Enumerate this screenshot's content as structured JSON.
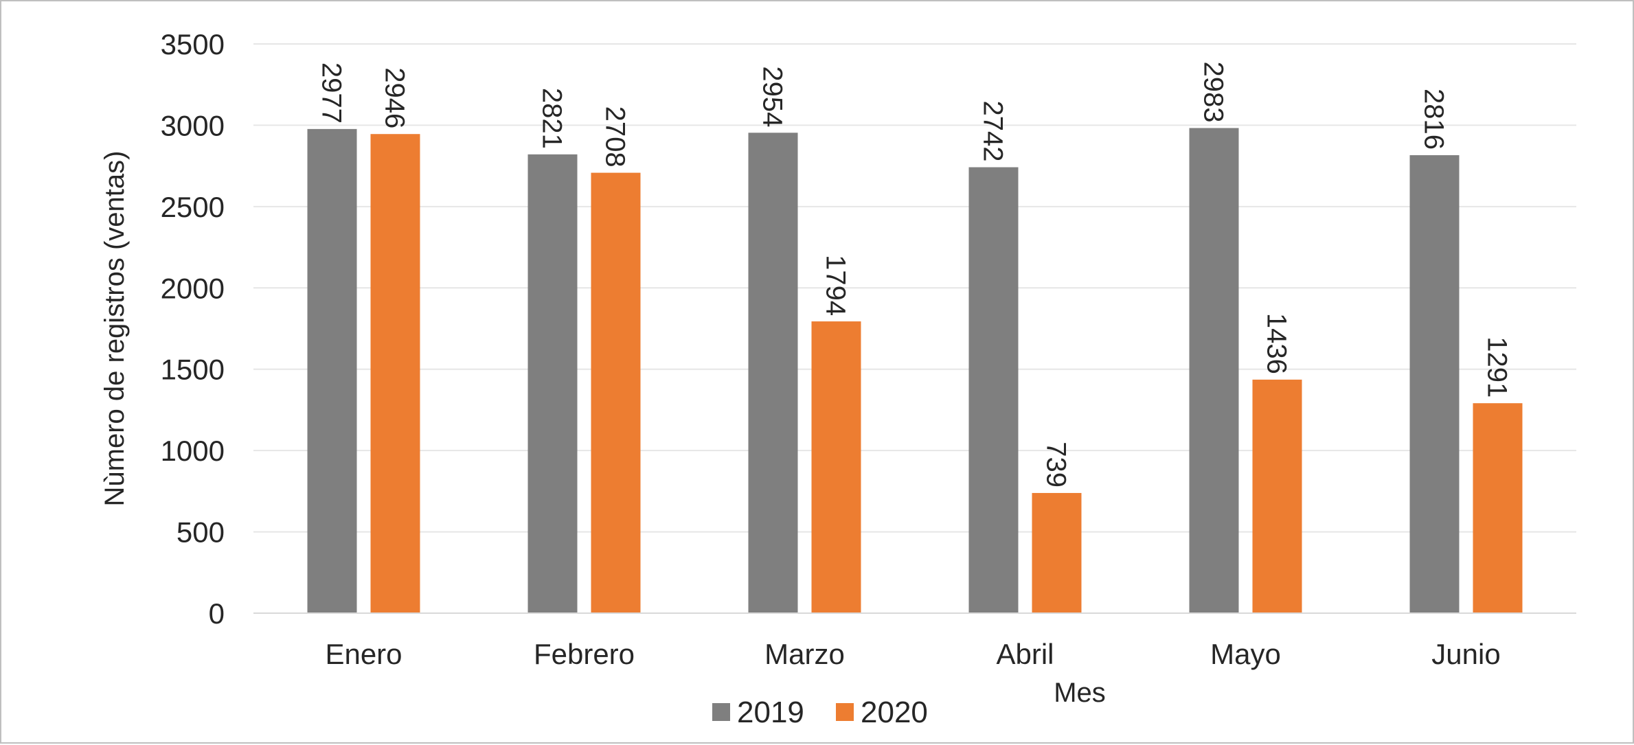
{
  "chart_data": {
    "type": "bar",
    "categories": [
      "Enero",
      "Febrero",
      "Marzo",
      "Abril",
      "Mayo",
      "Junio"
    ],
    "series": [
      {
        "name": "2019",
        "values": [
          2977,
          2821,
          2954,
          2742,
          2983,
          2816
        ],
        "color": "#7f7f7f"
      },
      {
        "name": "2020",
        "values": [
          2946,
          2708,
          1794,
          739,
          1436,
          1291
        ],
        "color": "#ed7d31"
      }
    ],
    "title": "",
    "xlabel": "Mes",
    "ylabel": "Nùmero de registros (ventas)",
    "ylim": [
      0,
      3500
    ],
    "yticks": [
      0,
      500,
      1000,
      1500,
      2000,
      2500,
      3000,
      3500
    ],
    "grid": true,
    "gridline_color": "#e6e6e6",
    "data_labels": true,
    "data_label_orientation": "rotated-vertical",
    "legend_position": "bottom"
  }
}
